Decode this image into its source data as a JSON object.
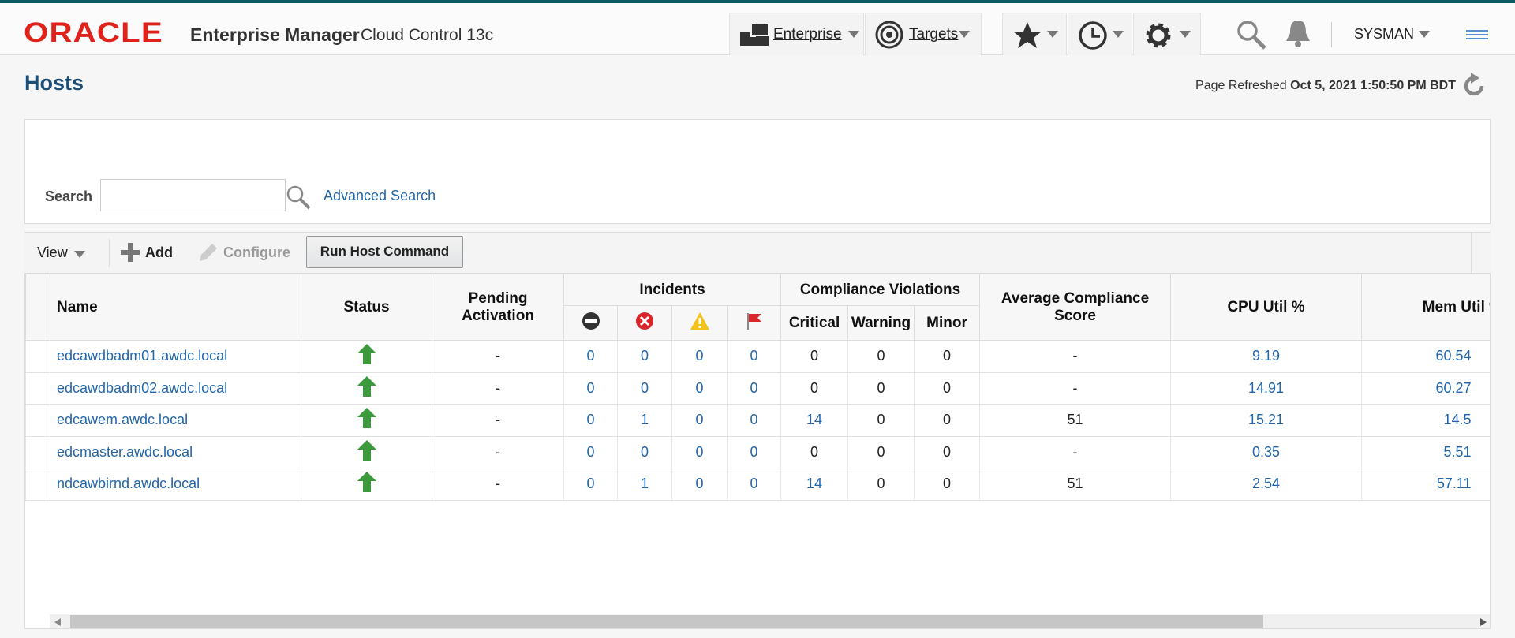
{
  "header": {
    "brand": "ORACLE",
    "product": "Enterprise Manager",
    "subtitle": "Cloud Control 13c",
    "nav": [
      "Enterprise",
      "Targets"
    ],
    "user": "SYSMAN"
  },
  "page": {
    "title": "Hosts",
    "refreshed_label": "Page Refreshed",
    "refreshed_time": "Oct 5, 2021 1:50:50 PM BDT"
  },
  "search": {
    "label": "Search",
    "advanced": "Advanced Search"
  },
  "toolbar": {
    "view": "View",
    "add": "Add",
    "configure": "Configure",
    "run": "Run Host Command"
  },
  "table": {
    "columns": {
      "name": "Name",
      "status": "Status",
      "pending": "Pending Activation",
      "incidents": "Incidents",
      "compliance": "Compliance Violations",
      "critical": "Critical",
      "warning": "Warning",
      "minor": "Minor",
      "score": "Average Compliance Score",
      "cpu": "CPU Util %",
      "mem": "Mem Util %"
    },
    "rows": [
      {
        "name": "edcawdbadm01.awdc.local",
        "pending": "-",
        "incidents": [
          "0",
          "0",
          "0",
          "0"
        ],
        "critical": "0",
        "warning": "0",
        "minor": "0",
        "score": "-",
        "cpu": "9.19",
        "mem": "60.54"
      },
      {
        "name": "edcawdbadm02.awdc.local",
        "pending": "-",
        "incidents": [
          "0",
          "0",
          "0",
          "0"
        ],
        "critical": "0",
        "warning": "0",
        "minor": "0",
        "score": "-",
        "cpu": "14.91",
        "mem": "60.27"
      },
      {
        "name": "edcawem.awdc.local",
        "pending": "-",
        "incidents": [
          "0",
          "1",
          "0",
          "0"
        ],
        "critical": "14",
        "warning": "0",
        "minor": "0",
        "score": "51",
        "cpu": "15.21",
        "mem": "14.5"
      },
      {
        "name": "edcmaster.awdc.local",
        "pending": "-",
        "incidents": [
          "0",
          "0",
          "0",
          "0"
        ],
        "critical": "0",
        "warning": "0",
        "minor": "0",
        "score": "-",
        "cpu": "0.35",
        "mem": "5.51"
      },
      {
        "name": "ndcawbirnd.awdc.local",
        "pending": "-",
        "incidents": [
          "0",
          "1",
          "0",
          "0"
        ],
        "critical": "14",
        "warning": "0",
        "minor": "0",
        "score": "51",
        "cpu": "2.54",
        "mem": "57.11"
      }
    ]
  }
}
